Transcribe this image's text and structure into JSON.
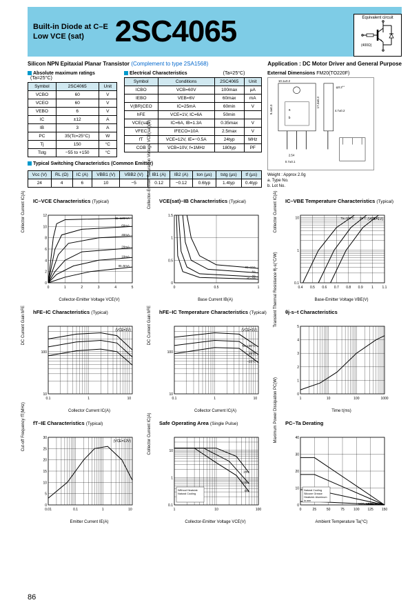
{
  "header": {
    "line1": "Built-in Diode at C–E",
    "line2": "Low VCE (sat)",
    "part_number": "2SC4065",
    "equiv_label": "Equivalent circuit",
    "equiv_res": "(400Ω)"
  },
  "subtitle": {
    "desc": "Silicon NPN Epitaxial Planar Transistor",
    "complement": "(Complement to type 2SA1568)",
    "application": "Application : DC Motor Driver and General Purpose"
  },
  "abs_max": {
    "title": "Absolute maximum ratings",
    "cond": "(Ta=25°C)",
    "headers": [
      "Symbol",
      "2SC4065",
      "Unit"
    ],
    "rows": [
      [
        "VCBO",
        "60",
        "V"
      ],
      [
        "VCEO",
        "60",
        "V"
      ],
      [
        "VEBO",
        "6",
        "V"
      ],
      [
        "IC",
        "±12",
        "A"
      ],
      [
        "IB",
        "3",
        "A"
      ],
      [
        "PC",
        "35(Tc=25°C)",
        "W"
      ],
      [
        "Tj",
        "150",
        "°C"
      ],
      [
        "Tstg",
        "−55 to +150",
        "°C"
      ]
    ]
  },
  "elec": {
    "title": "Electrical Characteristics",
    "cond": "(Ta=25°C)",
    "headers": [
      "Symbol",
      "Conditions",
      "2SC4065",
      "Unit"
    ],
    "rows": [
      [
        "ICBO",
        "VCB=60V",
        "100max",
        "µA"
      ],
      [
        "IEBO",
        "VEB=6V",
        "60max",
        "mA"
      ],
      [
        "V(BR)CEO",
        "IC=25mA",
        "60min",
        "V"
      ],
      [
        "hFE",
        "VCE=1V, IC=6A",
        "50min",
        ""
      ],
      [
        "VCE(sat)",
        "IC=6A, IB=1.3A",
        "0.35max",
        "V"
      ],
      [
        "VFEC",
        "IFECO=10A",
        "2.5max",
        "V"
      ],
      [
        "fT",
        "VCE=12V, IE=−0.5A",
        "24typ",
        "MHz"
      ],
      [
        "COB",
        "VCB=10V, f=1MHz",
        "180typ",
        "PF"
      ]
    ]
  },
  "switch": {
    "title": "Typical Switching Characteristics (Common Emitter)",
    "headers": [
      "Vcc (V)",
      "RL (Ω)",
      "IC (A)",
      "VBB1 (V)",
      "VBB2 (V)",
      "IB1 (A)",
      "IB2 (A)",
      "ton (µs)",
      "tstg (µs)",
      "tf (µs)"
    ],
    "row": [
      "24",
      "4",
      "6",
      "10",
      "−5",
      "0.12",
      "−0.12",
      "0.6typ",
      "1.4typ",
      "0.4typ"
    ]
  },
  "ext_dim": {
    "title": "External Dimensions",
    "pkg": "FM20(TO220F)",
    "weight": "Weight : Approx 2.0g",
    "note_a": "a. Type No.",
    "note_b": "b. Lot No."
  },
  "charts": [
    {
      "title": "IC–VCE Characteristics",
      "typ": "(Typical)",
      "ylabel": "Collector Current IC(A)",
      "xlabel": "Collector-Emitter Voltage VCE(V)",
      "xlim": [
        0,
        5
      ],
      "ylim": [
        0,
        12
      ],
      "xticks": [
        0,
        1,
        2,
        3,
        4,
        5
      ],
      "yticks": [
        0,
        2,
        4,
        6,
        8,
        10,
        12
      ],
      "curves": [
        {
          "label": "IB=120mA",
          "pts": [
            [
              0,
              0
            ],
            [
              0.15,
              4
            ],
            [
              0.3,
              8
            ],
            [
              0.5,
              10.5
            ],
            [
              1,
              11.2
            ],
            [
              5,
              11.5
            ]
          ]
        },
        {
          "label": "60mA",
          "pts": [
            [
              0,
              0
            ],
            [
              0.2,
              3
            ],
            [
              0.4,
              6
            ],
            [
              0.8,
              8.5
            ],
            [
              2,
              9.5
            ],
            [
              5,
              10
            ]
          ]
        },
        {
          "label": "40mA",
          "pts": [
            [
              0,
              0
            ],
            [
              0.3,
              2.5
            ],
            [
              0.6,
              5
            ],
            [
              1.2,
              7
            ],
            [
              3,
              8
            ],
            [
              5,
              8.3
            ]
          ]
        },
        {
          "label": "20mA",
          "pts": [
            [
              0,
              0
            ],
            [
              0.4,
              2
            ],
            [
              1,
              4
            ],
            [
              2,
              5.5
            ],
            [
              5,
              6.2
            ]
          ]
        },
        {
          "label": "10mA",
          "pts": [
            [
              0,
              0
            ],
            [
              0.5,
              1.5
            ],
            [
              1.5,
              3
            ],
            [
              3,
              4
            ],
            [
              5,
              4.5
            ]
          ]
        },
        {
          "label": "IB=5mA",
          "pts": [
            [
              0,
              0
            ],
            [
              1,
              1
            ],
            [
              2.5,
              2
            ],
            [
              5,
              2.8
            ]
          ]
        }
      ]
    },
    {
      "title": "VCE(sat)–IB Characteristics",
      "typ": "(Typical)",
      "ylabel": "Collector-Emitter Saturation Voltage VCE(sat)(V)",
      "xlabel": "Base Current IB(A)",
      "xlim": [
        0,
        1.0
      ],
      "ylim": [
        0,
        1.5
      ],
      "xticks": [
        0,
        0.5,
        1.0
      ],
      "yticks": [
        0,
        0.5,
        1.0,
        1.5
      ],
      "curves": [
        {
          "label": "IC=12A",
          "pts": [
            [
              0.15,
              1.5
            ],
            [
              0.2,
              1.0
            ],
            [
              0.3,
              0.6
            ],
            [
              0.5,
              0.4
            ],
            [
              1.0,
              0.32
            ]
          ]
        },
        {
          "label": "8A",
          "pts": [
            [
              0.1,
              1.5
            ],
            [
              0.13,
              0.9
            ],
            [
              0.2,
              0.5
            ],
            [
              0.4,
              0.3
            ],
            [
              1.0,
              0.22
            ]
          ]
        },
        {
          "label": "4A",
          "pts": [
            [
              0.05,
              1.5
            ],
            [
              0.08,
              0.7
            ],
            [
              0.15,
              0.35
            ],
            [
              0.3,
              0.2
            ],
            [
              1.0,
              0.13
            ]
          ]
        },
        {
          "label": "IC=2A",
          "pts": [
            [
              0.025,
              1.5
            ],
            [
              0.04,
              0.6
            ],
            [
              0.1,
              0.25
            ],
            [
              0.3,
              0.12
            ],
            [
              1.0,
              0.08
            ]
          ]
        }
      ]
    },
    {
      "title": "IC–VBE Temperature  Characteristics",
      "typ": "(Typical)",
      "ylabel": "Collector Current IC(A)",
      "xlabel": "Base-Emitter Voltage VBE(V)",
      "xlim": [
        0.4,
        1.1
      ],
      "ylim": [
        0.1,
        12
      ],
      "ylog": true,
      "xticks": [
        0.4,
        0.5,
        0.6,
        0.7,
        0.8,
        0.9,
        1.0,
        1.1
      ],
      "note": "(VCE=1V)",
      "curves": [
        {
          "label": "Ta=100°C",
          "pts": [
            [
              0.42,
              0.1
            ],
            [
              0.55,
              1
            ],
            [
              0.7,
              5
            ],
            [
              0.85,
              12
            ]
          ]
        },
        {
          "label": "25°C",
          "pts": [
            [
              0.55,
              0.1
            ],
            [
              0.68,
              1
            ],
            [
              0.82,
              5
            ],
            [
              0.95,
              12
            ]
          ]
        },
        {
          "label": "−25°C",
          "pts": [
            [
              0.65,
              0.1
            ],
            [
              0.78,
              1
            ],
            [
              0.92,
              5
            ],
            [
              1.05,
              12
            ]
          ]
        }
      ]
    },
    {
      "title": "hFE–IC Characteristics",
      "typ": "(Typical)",
      "ylabel": "DC Current Gain hFE",
      "xlabel": "Collector Current IC(A)",
      "xlim": [
        0.1,
        12
      ],
      "xlog": true,
      "ylim": [
        10,
        400
      ],
      "ylog": true,
      "note": "(VCE=1V)",
      "curves": [
        {
          "label": "",
          "pts": [
            [
              0.1,
              200
            ],
            [
              0.5,
              260
            ],
            [
              2,
              280
            ],
            [
              5,
              240
            ],
            [
              12,
              110
            ]
          ]
        },
        {
          "label": "",
          "pts": [
            [
              0.1,
              130
            ],
            [
              0.5,
              170
            ],
            [
              2,
              185
            ],
            [
              5,
              160
            ],
            [
              12,
              75
            ]
          ]
        },
        {
          "label": "",
          "pts": [
            [
              0.1,
              80
            ],
            [
              0.5,
              105
            ],
            [
              2,
              115
            ],
            [
              5,
              100
            ],
            [
              12,
              48
            ]
          ]
        }
      ]
    },
    {
      "title": "hFE–IC Temperature  Characteristics",
      "typ": "(Typical)",
      "ylabel": "DC Current Gain hFE",
      "xlabel": "Collector Current IC(A)",
      "xlim": [
        0.1,
        12
      ],
      "xlog": true,
      "ylim": [
        10,
        400
      ],
      "ylog": true,
      "note": "(VCE=1V)",
      "curves": [
        {
          "label": "Ta=100°C",
          "pts": [
            [
              0.1,
              220
            ],
            [
              1,
              280
            ],
            [
              4,
              260
            ],
            [
              12,
              130
            ]
          ]
        },
        {
          "label": "25°C",
          "pts": [
            [
              0.1,
              140
            ],
            [
              1,
              185
            ],
            [
              4,
              175
            ],
            [
              12,
              85
            ]
          ]
        },
        {
          "label": "−25°C",
          "pts": [
            [
              0.1,
              90
            ],
            [
              1,
              125
            ],
            [
              4,
              120
            ],
            [
              12,
              55
            ]
          ]
        }
      ]
    },
    {
      "title": "θj-s–t Characteristics",
      "typ": "",
      "ylabel": "Transient Thermal Resistance θj-s(°C/W)",
      "xlabel": "Time t(ms)",
      "xlim": [
        1,
        1000
      ],
      "xlog": true,
      "ylim": [
        0,
        5
      ],
      "yticks": [
        0,
        1,
        2,
        3,
        4,
        5
      ],
      "curves": [
        {
          "label": "",
          "pts": [
            [
              1,
              0.3
            ],
            [
              5,
              0.8
            ],
            [
              20,
              1.6
            ],
            [
              100,
              3.0
            ],
            [
              500,
              4.0
            ],
            [
              1000,
              4.3
            ]
          ]
        }
      ]
    },
    {
      "title": "fT–IE Characteristics",
      "typ": "(Typical)",
      "ylabel": "Cut-off Frequency fT(MHz)",
      "xlabel": "Emitter Current IE(A)",
      "xlim": [
        0.01,
        12
      ],
      "xlog": true,
      "ylim": [
        0,
        30
      ],
      "yticks": [
        0,
        5,
        10,
        15,
        20,
        25,
        30
      ],
      "note": "(VCE=12V)",
      "curves": [
        {
          "label": "",
          "pts": [
            [
              0.01,
              3
            ],
            [
              0.05,
              10
            ],
            [
              0.2,
              20
            ],
            [
              0.5,
              25
            ],
            [
              1.5,
              26
            ],
            [
              5,
              20
            ],
            [
              12,
              11
            ]
          ]
        }
      ]
    },
    {
      "title": "Safe Operating Area",
      "typ": "(Single Pulse)",
      "ylabel": "Collector Current IC(A)",
      "xlabel": "Collector-Emitter Voltage VCE(V)",
      "xlim": [
        1,
        100
      ],
      "xlog": true,
      "ylim": [
        0.1,
        30
      ],
      "ylog": true,
      "curves": [
        {
          "label": "1ms",
          "pts": [
            [
              1,
              12
            ],
            [
              10,
              12
            ],
            [
              30,
              6
            ],
            [
              60,
              1.5
            ]
          ]
        },
        {
          "label": "10ms",
          "pts": [
            [
              1,
              12
            ],
            [
              5,
              12
            ],
            [
              20,
              4
            ],
            [
              60,
              0.6
            ]
          ]
        },
        {
          "label": "DC",
          "pts": [
            [
              1,
              12
            ],
            [
              3,
              12
            ],
            [
              10,
              3.5
            ],
            [
              30,
              1.2
            ],
            [
              60,
              0.3
            ]
          ]
        }
      ],
      "note_box": "Without Heatsink\nNatural Cooling"
    },
    {
      "title": "PC–Ta Derating",
      "typ": "",
      "ylabel": "Maximum Power Dissipation PC(W)",
      "xlabel": "Ambient Temperature Ta(°C)",
      "xlim": [
        0,
        150
      ],
      "ylim": [
        0,
        40
      ],
      "xticks": [
        0,
        25,
        50,
        75,
        100,
        125,
        150
      ],
      "yticks": [
        0,
        10,
        20,
        30,
        40
      ],
      "curves": [
        {
          "label": "150×150×2",
          "pts": [
            [
              0,
              28
            ],
            [
              25,
              28
            ],
            [
              150,
              0
            ]
          ]
        },
        {
          "label": "100×100×2",
          "pts": [
            [
              0,
              18
            ],
            [
              25,
              18
            ],
            [
              150,
              0
            ]
          ]
        },
        {
          "label": "50×50×2",
          "pts": [
            [
              0,
              9
            ],
            [
              25,
              9
            ],
            [
              150,
              0
            ]
          ]
        },
        {
          "label": "Without Heatsink",
          "pts": [
            [
              0,
              2
            ],
            [
              25,
              2
            ],
            [
              150,
              0
            ]
          ]
        }
      ],
      "note_box": "Natural Cooling\nSilicone Grease\nHeatsink: Aluminum\nin mm"
    }
  ],
  "page_number": "86",
  "colors": {
    "header_bg": "#7ecce6",
    "link_blue": "#0066cc",
    "sq_blue": "#0099cc",
    "th_bg": "#d0e8f0",
    "grid": "#000"
  }
}
